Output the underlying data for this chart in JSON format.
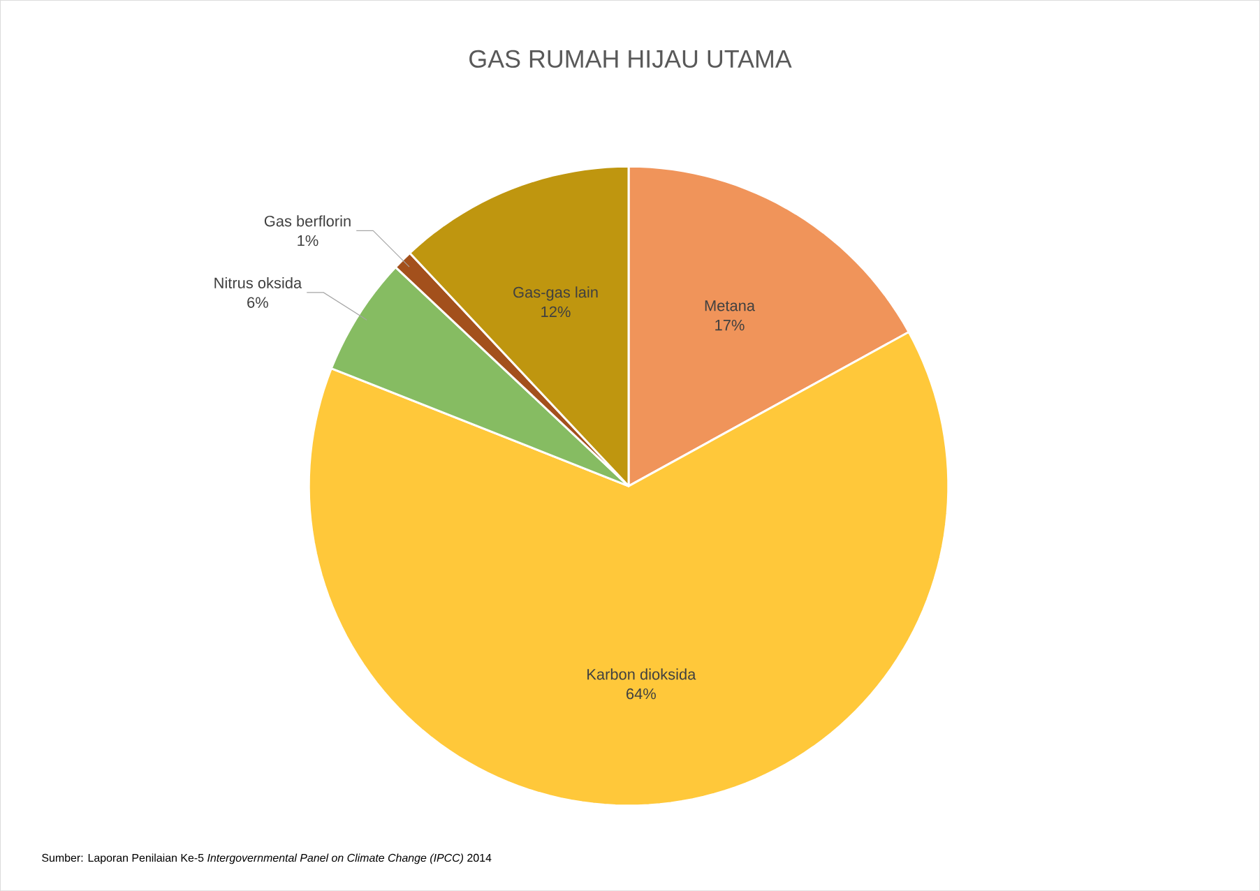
{
  "chart_data": {
    "type": "pie",
    "title": "GAS RUMAH HIJAU UTAMA",
    "categories": [
      "Metana",
      "Karbon dioksida",
      "Nitrus oksida",
      "Gas berflorin",
      "Gas-gas lain"
    ],
    "values": [
      17,
      64,
      6,
      1,
      12
    ],
    "value_labels": [
      "17%",
      "64%",
      "6%",
      "1%",
      "12%"
    ],
    "colors": [
      "#f0945a",
      "#ffc83a",
      "#86bc62",
      "#a3501c",
      "#bf960f"
    ],
    "annotations": [
      "Sumber: Laporan Penilaian Ke-5 *Intergovernmental Panel on Climate Change (IPCC)* 2014"
    ]
  }
}
